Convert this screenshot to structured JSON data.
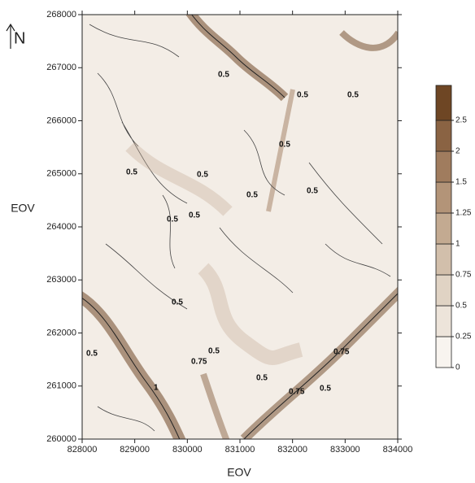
{
  "chart_data": {
    "type": "contour",
    "xlabel": "EOV",
    "ylabel": "EOV",
    "north": "N",
    "xlim": [
      828000,
      834000
    ],
    "xticks": [
      828000,
      829000,
      830000,
      831000,
      832000,
      833000,
      834000
    ],
    "ylim": [
      260000,
      268000
    ],
    "yticks": [
      260000,
      261000,
      262000,
      263000,
      264000,
      265000,
      266000,
      267000,
      268000
    ],
    "colorbar": {
      "levels": [
        0,
        0.25,
        0.5,
        0.75,
        1,
        1.25,
        1.5,
        2,
        2.5
      ],
      "colors": [
        "#f8f4ef",
        "#ede4da",
        "#e0d3c4",
        "#d2bfab",
        "#c3aa91",
        "#b39478",
        "#a07c5e",
        "#8a6343",
        "#6e4624"
      ]
    },
    "contour_labels": [
      0.5,
      0.5,
      0.5,
      0.5,
      0.5,
      0.5,
      0.5,
      0.5,
      0.5,
      0.5,
      0.5,
      0.5,
      0.75,
      0.5,
      1,
      0.5,
      0.75,
      0.5,
      0.75
    ]
  }
}
